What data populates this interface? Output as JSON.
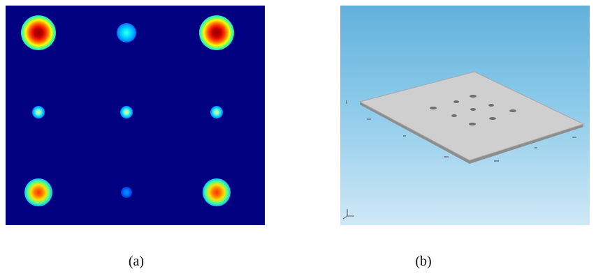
{
  "captions": {
    "a": "(a)",
    "b": "(b)"
  },
  "colors": {
    "heatmap_background": "#000080",
    "render_background_top": "#62b1dc",
    "render_background_bottom": "#cfe8f6",
    "plate_fill": "#cfcfcf"
  },
  "icons": {
    "axis_triad": "axis-triad-icon"
  }
}
